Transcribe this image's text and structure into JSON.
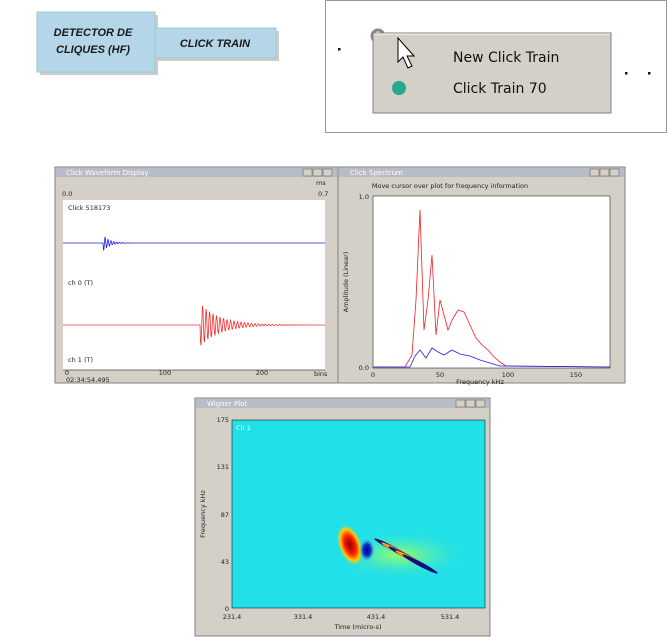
{
  "labels": {
    "detector": [
      "DETECTOR DE",
      "CLIQUES (HF)"
    ],
    "click_train": "CLICK TRAIN"
  },
  "menu": {
    "items": [
      "New Click Train",
      "Click Train 70"
    ]
  },
  "waveform_window": {
    "title": "Click Waveform Display",
    "time_unit": "ms",
    "time_start": "0.0",
    "time_end": "0.7",
    "click": "Click 518173",
    "channels": [
      "ch 0 (T)",
      "ch 1 (T)"
    ],
    "x_ticks": [
      "0",
      "100",
      "200"
    ],
    "x_unit": "bins",
    "timestamp": "02:34:54.495"
  },
  "spectrum_window": {
    "title": "Click Spectrum",
    "hint": "Move cursor over plot for frequency information",
    "y_label": "Amplitude (Linear)",
    "y_ticks": [
      "1.0",
      "0.0"
    ],
    "x_ticks": [
      "0",
      "50",
      "100",
      "150"
    ],
    "x_label": "Frequency kHz"
  },
  "wigner_window": {
    "title": "Wigner Plot",
    "channel": "Ch 1",
    "y_label": "Frequency kHz",
    "y_ticks": [
      "175",
      "131",
      "87",
      "43",
      "0"
    ],
    "x_ticks": [
      "231.4",
      "331.4",
      "431.4",
      "531.4"
    ],
    "x_label": "Time (micro-s)"
  }
}
